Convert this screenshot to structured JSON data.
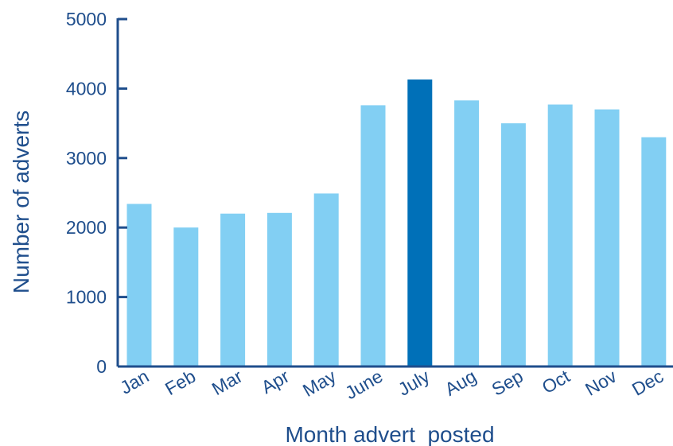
{
  "chart_data": {
    "type": "bar",
    "title": "",
    "xlabel": "Month advert  posted",
    "ylabel": "Number of adverts",
    "categories": [
      "Jan",
      "Feb",
      "Mar",
      "Apr",
      "May",
      "June",
      "July",
      "Aug",
      "Sep",
      "Oct",
      "Nov",
      "Dec"
    ],
    "values": [
      2340,
      2000,
      2200,
      2210,
      2490,
      3760,
      4130,
      3830,
      3500,
      3770,
      3700,
      3300
    ],
    "highlight_index": 6,
    "ylim": [
      0,
      5000
    ],
    "yticks": [
      0,
      1000,
      2000,
      3000,
      4000,
      5000
    ],
    "grid": false,
    "colors": {
      "bar": "#82cff3",
      "highlight": "#0070b8",
      "axis": "#1f4e8c"
    }
  }
}
